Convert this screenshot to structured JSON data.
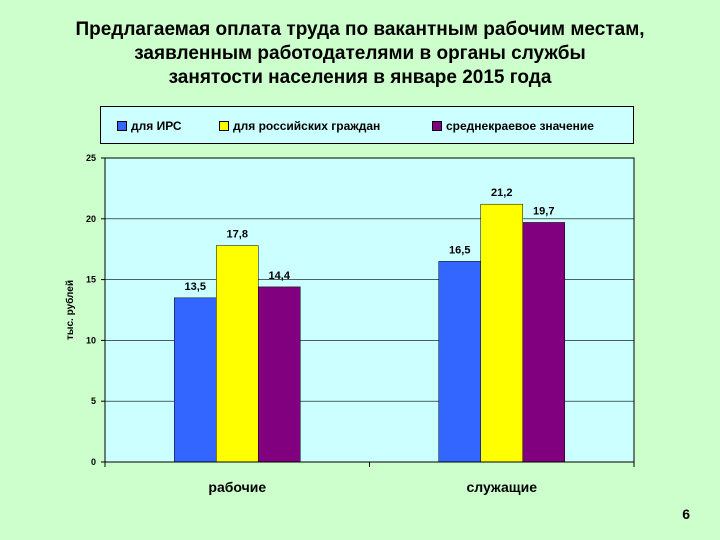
{
  "slide": {
    "title_lines": [
      "Предлагаемая оплата труда по вакантным рабочим местам,",
      "заявленным работодателями в органы службы",
      "занятости населения в январе 2015 года"
    ],
    "page_number": "6"
  },
  "chart_data": {
    "type": "bar",
    "title": "Предлагаемая оплата труда по вакантным рабочим местам, заявленным работодателями в органы службы занятости населения в январе 2015 года",
    "categories": [
      "рабочие",
      "служащие"
    ],
    "series": [
      {
        "name": "для ИРС",
        "values": [
          13.5,
          16.5
        ],
        "color": "#3366ff"
      },
      {
        "name": "для российских граждан",
        "values": [
          17.8,
          21.2
        ],
        "color": "#ffff00"
      },
      {
        "name": "среднекраевое значение",
        "values": [
          14.4,
          19.7
        ],
        "color": "#800080"
      }
    ],
    "ylabel": "тыс. рублей",
    "ylim": [
      0,
      25
    ],
    "yticks": [
      0,
      5,
      10,
      15,
      20,
      25
    ],
    "grid": true,
    "legend": "top",
    "plot_background": "#ccffff"
  }
}
